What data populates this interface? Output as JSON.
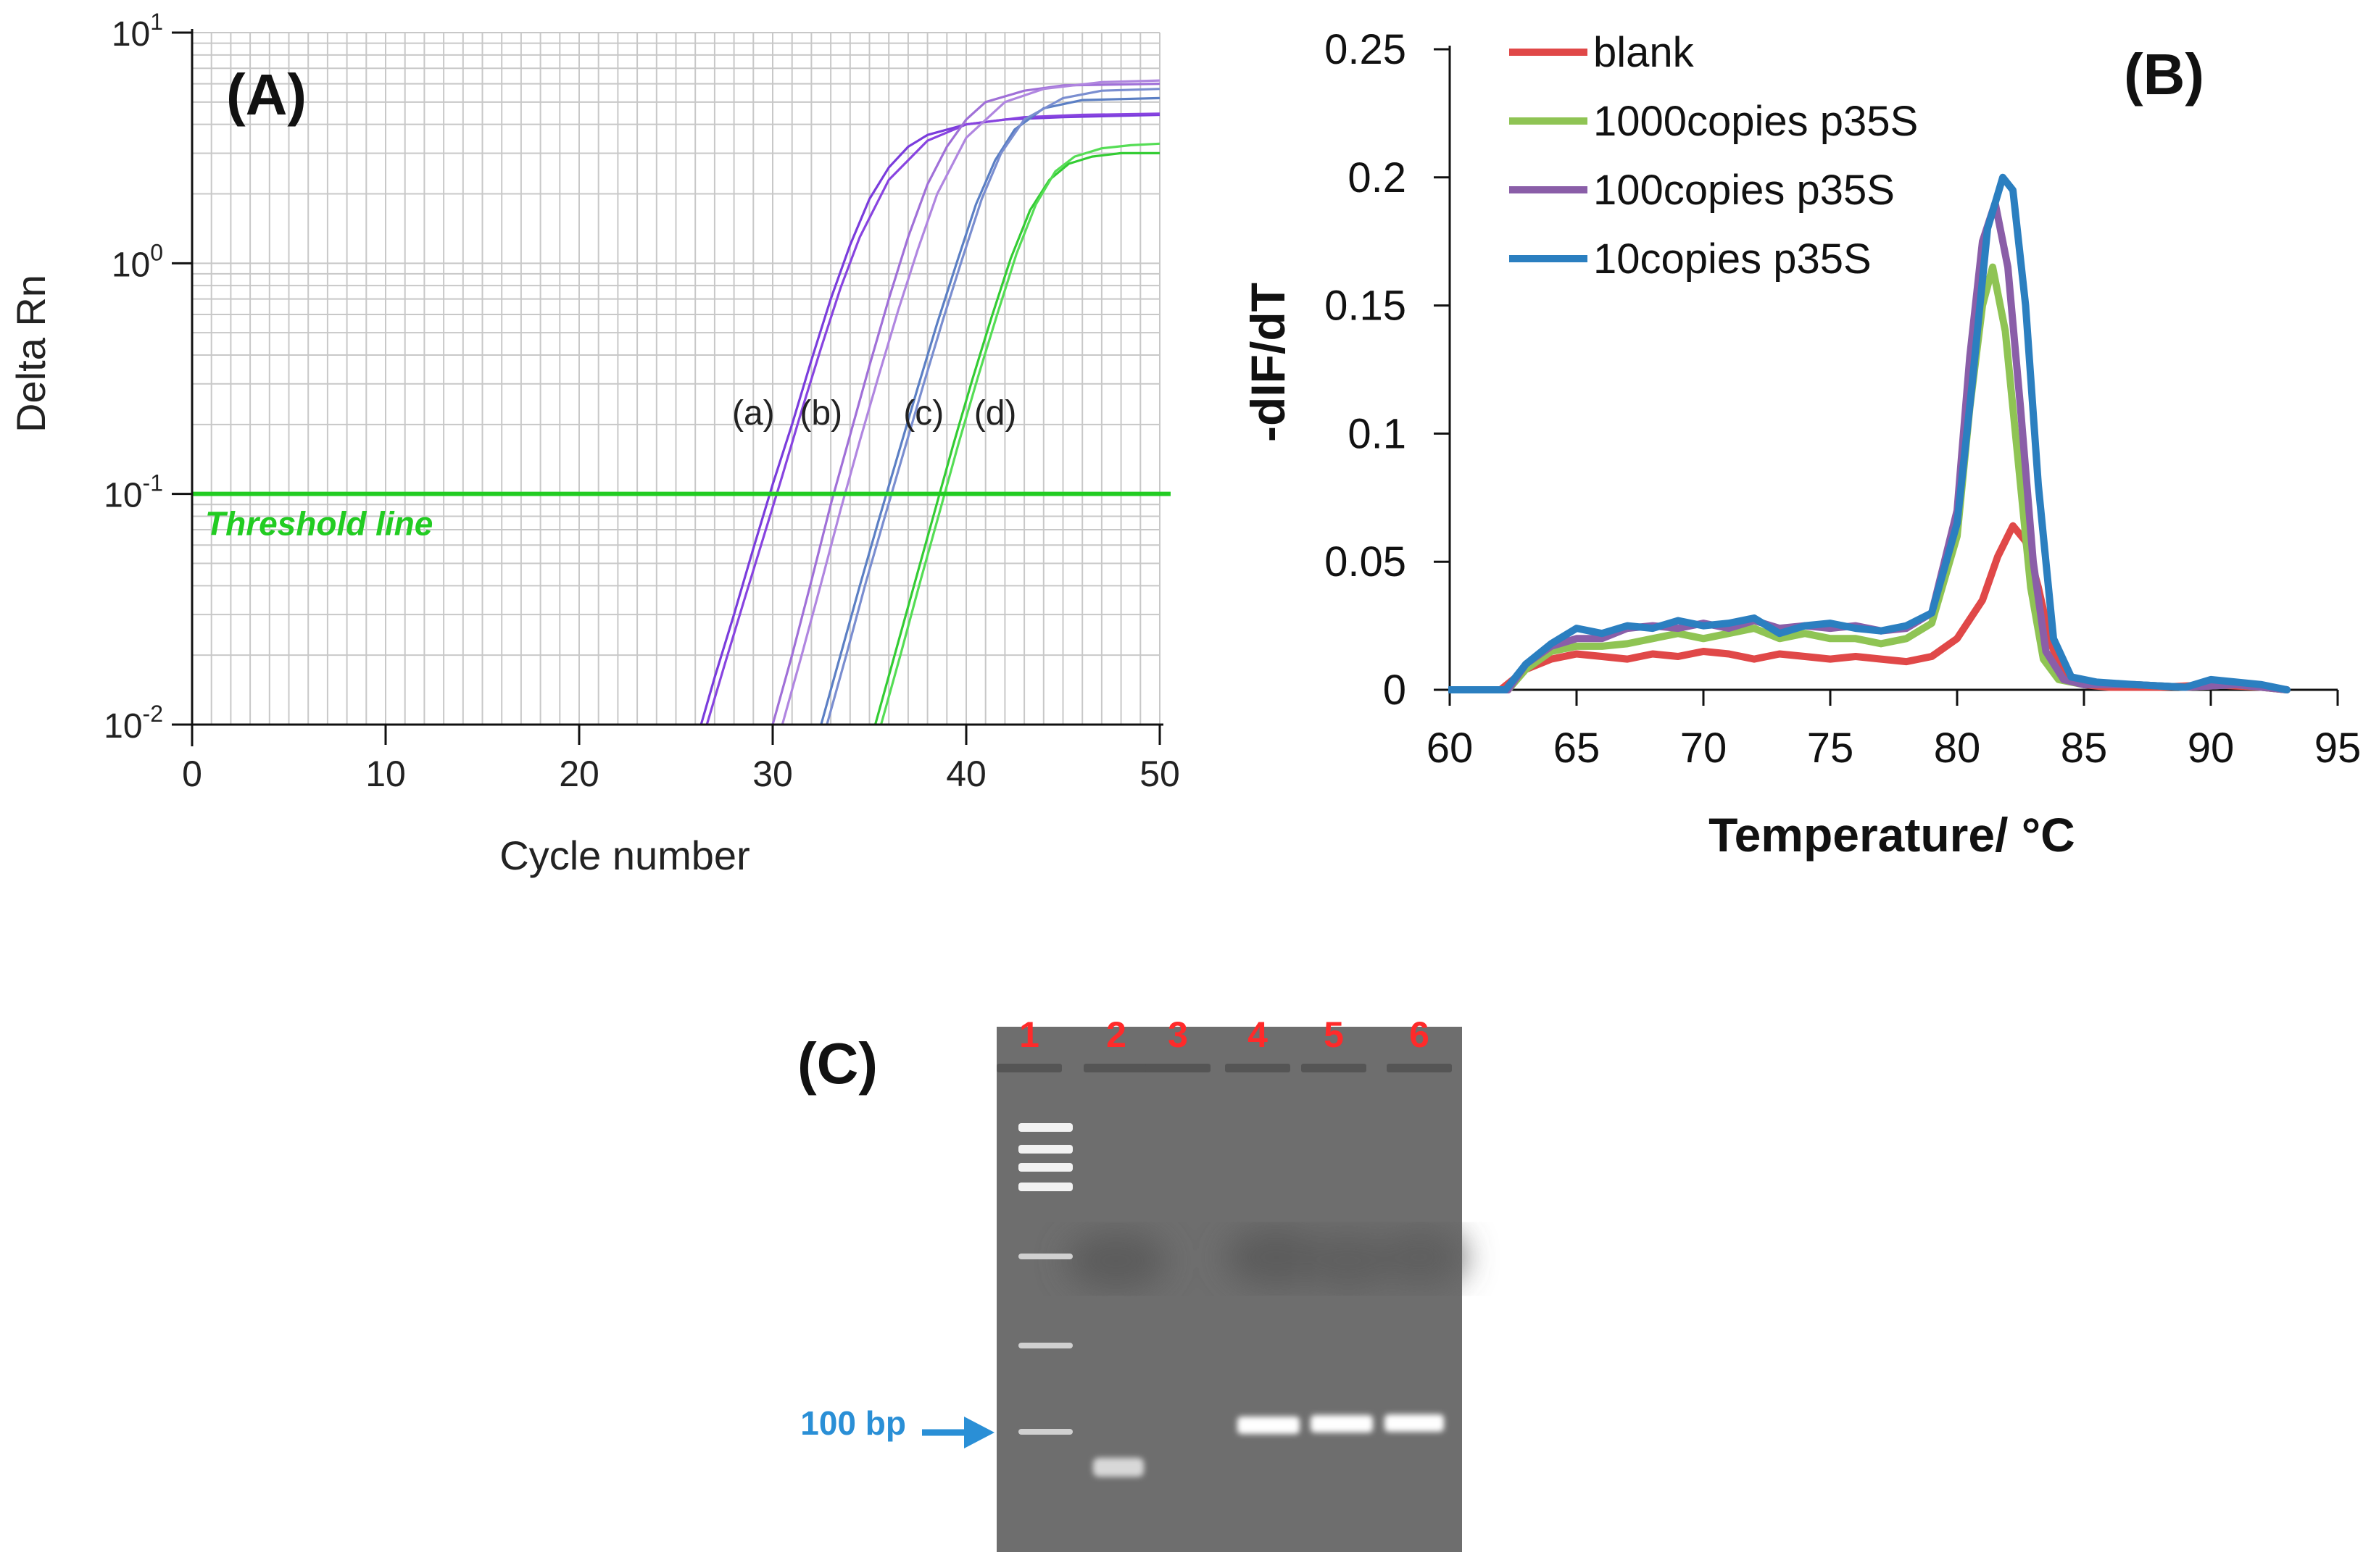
{
  "chart_data": [
    {
      "panel": "(A)",
      "type": "line",
      "yscale": "log",
      "xlabel": "Cycle number",
      "ylabel": "Delta Rn",
      "xlim": [
        0,
        50
      ],
      "ylim": [
        0.01,
        10
      ],
      "xticks": [
        "0",
        "10",
        "20",
        "30",
        "40",
        "50"
      ],
      "yticks": [
        {
          "base": "10",
          "exp": "1",
          "value": 10
        },
        {
          "base": "10",
          "exp": "0",
          "value": 1
        },
        {
          "base": "10",
          "exp": "-1",
          "value": 0.1
        },
        {
          "base": "10",
          "exp": "-2",
          "value": 0.01
        }
      ],
      "grid": true,
      "threshold": {
        "label": "Threshold line",
        "value": 0.1,
        "color": "#22cc22"
      },
      "curve_labels": [
        {
          "text": "(a)",
          "x": 29.0,
          "y": 0.2
        },
        {
          "text": "(b)",
          "x": 32.5,
          "y": 0.2
        },
        {
          "text": "(c)",
          "x": 37.8,
          "y": 0.2
        },
        {
          "text": "(d)",
          "x": 41.5,
          "y": 0.2
        }
      ],
      "series": [
        {
          "name": "(a)",
          "color": "#7a3cdc",
          "x": [
            26.3,
            27,
            28,
            29,
            30,
            31,
            32,
            33,
            34,
            35,
            36,
            37,
            38,
            40,
            42,
            45,
            50
          ],
          "y": [
            0.01,
            0.016,
            0.03,
            0.058,
            0.11,
            0.2,
            0.38,
            0.7,
            1.2,
            1.9,
            2.6,
            3.2,
            3.6,
            4.0,
            4.2,
            4.3,
            4.4
          ]
        },
        {
          "name": "(a) replicate",
          "color": "#8844e0",
          "x": [
            26.6,
            27.5,
            28.5,
            29.5,
            30.5,
            31.5,
            32.5,
            33.5,
            34.5,
            36,
            38,
            40,
            43,
            46,
            50
          ],
          "y": [
            0.01,
            0.018,
            0.034,
            0.064,
            0.12,
            0.23,
            0.43,
            0.78,
            1.3,
            2.3,
            3.4,
            4.0,
            4.3,
            4.4,
            4.45
          ]
        },
        {
          "name": "(b)",
          "color": "#a070d8",
          "x": [
            30.0,
            31,
            32,
            33,
            34,
            35,
            36,
            37,
            38,
            39,
            40,
            41,
            43,
            45,
            50
          ],
          "y": [
            0.01,
            0.02,
            0.042,
            0.09,
            0.18,
            0.36,
            0.7,
            1.3,
            2.2,
            3.2,
            4.2,
            5.0,
            5.6,
            5.9,
            6.0
          ]
        },
        {
          "name": "(b) replicate",
          "color": "#b086e0",
          "x": [
            30.5,
            31.5,
            32.5,
            33.5,
            34.5,
            35.5,
            36.5,
            37.5,
            38.5,
            40,
            42,
            44,
            47,
            50
          ],
          "y": [
            0.01,
            0.02,
            0.041,
            0.085,
            0.17,
            0.33,
            0.63,
            1.15,
            2.0,
            3.5,
            5.0,
            5.7,
            6.1,
            6.2
          ]
        },
        {
          "name": "(c)",
          "color": "#5b7fc4",
          "x": [
            32.5,
            33.5,
            34.5,
            35.5,
            36.5,
            37.5,
            38.5,
            39.5,
            40.5,
            41.5,
            42.5,
            44,
            46,
            50
          ],
          "y": [
            0.01,
            0.02,
            0.04,
            0.078,
            0.15,
            0.29,
            0.55,
            1.0,
            1.8,
            2.8,
            3.8,
            4.7,
            5.1,
            5.2
          ]
        },
        {
          "name": "(c) replicate",
          "color": "#7a8ed0",
          "x": [
            32.8,
            33.8,
            34.8,
            35.8,
            36.8,
            37.8,
            38.8,
            39.8,
            40.8,
            41.8,
            43,
            45,
            47,
            50
          ],
          "y": [
            0.01,
            0.02,
            0.041,
            0.08,
            0.155,
            0.3,
            0.57,
            1.05,
            1.9,
            3.0,
            4.2,
            5.2,
            5.6,
            5.7
          ]
        },
        {
          "name": "(d)",
          "color": "#33cc33",
          "x": [
            35.3,
            36.3,
            37.3,
            38.3,
            39.3,
            40.3,
            41.3,
            42.3,
            43.3,
            44.3,
            45.3,
            46.5,
            48,
            50
          ],
          "y": [
            0.01,
            0.02,
            0.04,
            0.08,
            0.16,
            0.31,
            0.58,
            1.05,
            1.7,
            2.3,
            2.7,
            2.9,
            3.0,
            3.0
          ]
        },
        {
          "name": "(d) replicate",
          "color": "#55dd55",
          "x": [
            35.6,
            36.6,
            37.6,
            38.6,
            39.6,
            40.6,
            41.6,
            42.6,
            43.6,
            44.6,
            45.6,
            47,
            48.5,
            50
          ],
          "y": [
            0.01,
            0.02,
            0.041,
            0.082,
            0.165,
            0.32,
            0.6,
            1.1,
            1.8,
            2.5,
            2.9,
            3.15,
            3.25,
            3.3
          ]
        }
      ]
    },
    {
      "panel": "(B)",
      "type": "line",
      "xlabel": "Temperature/ °C",
      "ylabel": "-dIF/dT",
      "xlim": [
        60,
        95
      ],
      "ylim": [
        0,
        0.25
      ],
      "xticks": [
        "60",
        "65",
        "70",
        "75",
        "80",
        "85",
        "90",
        "95"
      ],
      "yticks": [
        "0",
        "0.05",
        "0.1",
        "0.15",
        "0.2",
        "0.25"
      ],
      "grid": false,
      "legend_position": "top-left",
      "series": [
        {
          "name": "blank",
          "color": "#e04848",
          "x": [
            60,
            62,
            62.5,
            63,
            64,
            65,
            66,
            67,
            68,
            69,
            70,
            71,
            72,
            73,
            74,
            75,
            76,
            77,
            78,
            79,
            80,
            81,
            81.6,
            82.2,
            82.7,
            83.2,
            83.7,
            84.2,
            85,
            86,
            88,
            90,
            92,
            93
          ],
          "y": [
            0,
            0,
            0.004,
            0.008,
            0.012,
            0.014,
            0.013,
            0.012,
            0.014,
            0.013,
            0.015,
            0.014,
            0.012,
            0.014,
            0.013,
            0.012,
            0.013,
            0.012,
            0.011,
            0.013,
            0.02,
            0.035,
            0.052,
            0.064,
            0.058,
            0.04,
            0.018,
            0.006,
            0.002,
            0.001,
            0.001,
            0.002,
            0.001,
            0
          ]
        },
        {
          "name": "1000copies p35S",
          "color": "#8fc454",
          "x": [
            60,
            62.3,
            63,
            64,
            65,
            66,
            67,
            68,
            69,
            70,
            71,
            72,
            73,
            74,
            75,
            76,
            77,
            78,
            79,
            80,
            80.5,
            81,
            81.4,
            81.9,
            82.4,
            82.9,
            83.4,
            84,
            85,
            87,
            89,
            91,
            93
          ],
          "y": [
            0,
            0,
            0.008,
            0.015,
            0.017,
            0.017,
            0.018,
            0.02,
            0.022,
            0.02,
            0.022,
            0.024,
            0.02,
            0.022,
            0.02,
            0.02,
            0.018,
            0.02,
            0.026,
            0.06,
            0.11,
            0.15,
            0.165,
            0.14,
            0.09,
            0.04,
            0.012,
            0.004,
            0.002,
            0.002,
            0.001,
            0.002,
            0
          ]
        },
        {
          "name": "100copies p35S",
          "color": "#8a5ea8",
          "x": [
            60,
            62.3,
            63,
            64,
            65,
            66,
            67,
            68,
            69,
            70,
            71,
            72,
            73,
            74,
            75,
            76,
            77,
            78,
            79,
            80,
            80.5,
            81,
            81.5,
            82,
            82.5,
            83,
            83.5,
            84.2,
            85,
            87,
            89,
            91,
            93
          ],
          "y": [
            0,
            0,
            0.01,
            0.017,
            0.02,
            0.02,
            0.024,
            0.025,
            0.024,
            0.026,
            0.024,
            0.027,
            0.024,
            0.025,
            0.024,
            0.025,
            0.023,
            0.024,
            0.03,
            0.07,
            0.13,
            0.175,
            0.19,
            0.165,
            0.11,
            0.05,
            0.015,
            0.004,
            0.002,
            0.002,
            0.001,
            0.002,
            0
          ]
        },
        {
          "name": "10copies p35S",
          "color": "#2b7fc0",
          "x": [
            60,
            61,
            62.2,
            63,
            64,
            65,
            66,
            67,
            68,
            69,
            70,
            71,
            72,
            73,
            74,
            75,
            76,
            77,
            78,
            79,
            80,
            80.6,
            81.2,
            81.8,
            82.2,
            82.7,
            83.2,
            83.8,
            84.5,
            85.5,
            87,
            89,
            90,
            91,
            92,
            93
          ],
          "y": [
            0,
            0,
            0,
            0.01,
            0.018,
            0.024,
            0.022,
            0.025,
            0.024,
            0.027,
            0.025,
            0.026,
            0.028,
            0.022,
            0.025,
            0.026,
            0.024,
            0.023,
            0.025,
            0.03,
            0.065,
            0.12,
            0.18,
            0.2,
            0.195,
            0.15,
            0.08,
            0.02,
            0.005,
            0.003,
            0.002,
            0.001,
            0.004,
            0.003,
            0.002,
            0
          ]
        }
      ]
    },
    {
      "panel": "(C)",
      "type": "gel",
      "lanes": [
        "1",
        "2",
        "3",
        "4",
        "5",
        "6"
      ],
      "annotation": "100 bp",
      "lane_color": "#ff2a2a",
      "annotation_color": "#2a8fd6"
    }
  ]
}
